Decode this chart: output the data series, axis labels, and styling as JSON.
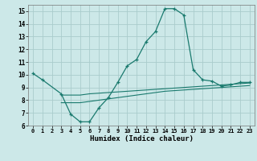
{
  "xlabel": "Humidex (Indice chaleur)",
  "bg_color": "#cce8e8",
  "grid_color": "#aacccc",
  "line_color": "#1a7a6e",
  "xlim": [
    -0.5,
    23.5
  ],
  "ylim": [
    6,
    15.5
  ],
  "xticks": [
    0,
    1,
    2,
    3,
    4,
    5,
    6,
    7,
    8,
    9,
    10,
    11,
    12,
    13,
    14,
    15,
    16,
    17,
    18,
    19,
    20,
    21,
    22,
    23
  ],
  "yticks": [
    6,
    7,
    8,
    9,
    10,
    11,
    12,
    13,
    14,
    15
  ],
  "line1_x": [
    0,
    1,
    3,
    4,
    5,
    6,
    7,
    8,
    9,
    10,
    11,
    12,
    13,
    14,
    15,
    16,
    17,
    18,
    19,
    20,
    21,
    22,
    23
  ],
  "line1_y": [
    10.1,
    9.6,
    8.5,
    6.9,
    6.3,
    6.3,
    7.4,
    8.2,
    9.4,
    10.7,
    11.2,
    12.6,
    13.4,
    15.2,
    15.2,
    14.7,
    10.4,
    9.6,
    9.5,
    9.1,
    9.2,
    9.4,
    9.4
  ],
  "line2_x": [
    3,
    5,
    6,
    7,
    8,
    9,
    10,
    11,
    12,
    13,
    14,
    15,
    16,
    17,
    18,
    19,
    20,
    21,
    22,
    23
  ],
  "line2_y": [
    8.4,
    8.4,
    8.5,
    8.55,
    8.6,
    8.65,
    8.7,
    8.75,
    8.8,
    8.85,
    8.9,
    8.95,
    9.0,
    9.05,
    9.1,
    9.15,
    9.2,
    9.25,
    9.3,
    9.35
  ],
  "line3_x": [
    3,
    5,
    6,
    7,
    8,
    9,
    10,
    11,
    12,
    13,
    14,
    15,
    16,
    17,
    18,
    19,
    20,
    21,
    22,
    23
  ],
  "line3_y": [
    7.8,
    7.8,
    7.9,
    8.0,
    8.1,
    8.2,
    8.3,
    8.4,
    8.5,
    8.6,
    8.7,
    8.75,
    8.8,
    8.85,
    8.9,
    8.95,
    9.0,
    9.05,
    9.1,
    9.15
  ]
}
